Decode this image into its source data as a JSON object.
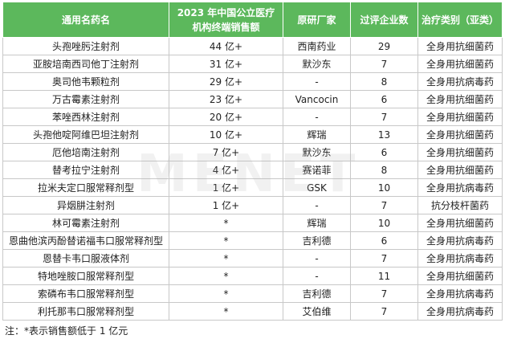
{
  "watermark": "MENET",
  "table": {
    "header": [
      "通用名药名",
      [
        "2023 年中国公立医疗",
        "机构终端销售额"
      ],
      "原研厂家",
      "过评企业数",
      "治疗类别（亚类）"
    ],
    "rows": [
      [
        "头孢唑肟注射剂",
        "44 亿+",
        "西南药业",
        29,
        "全身用抗细菌药"
      ],
      [
        "亚胺培南西司他丁注射剂",
        "31 亿+",
        "默沙东",
        7,
        "全身用抗细菌药"
      ],
      [
        "奥司他韦颗粒剂",
        "29 亿+",
        "-",
        8,
        "全身用抗病毒药"
      ],
      [
        "万古霉素注射剂",
        "23 亿+",
        "Vancocin",
        6,
        "全身用抗细菌药"
      ],
      [
        "苯唑西林注射剂",
        "20 亿+",
        "-",
        7,
        "全身用抗细菌药"
      ],
      [
        "头孢他啶阿维巴坦注射剂",
        "10 亿+",
        "辉瑞",
        13,
        "全身用抗细菌药"
      ],
      [
        "厄他培南注射剂",
        "7 亿+",
        "默沙东",
        6,
        "全身用抗细菌药"
      ],
      [
        "替考拉宁注射剂",
        "4 亿+",
        "赛诺菲",
        8,
        "全身用抗细菌药"
      ],
      [
        "拉米夫定口服常释剂型",
        "1 亿+",
        "GSK",
        10,
        "全身用抗病毒药"
      ],
      [
        "异烟肼注射剂",
        "1 亿+",
        "-",
        7,
        "抗分枝杆菌药"
      ],
      [
        "林可霉素注射剂",
        "*",
        "辉瑞",
        10,
        "全身用抗细菌药"
      ],
      [
        "恩曲他滨丙酚替诺福韦口服常释剂型",
        "*",
        "吉利德",
        6,
        "全身用抗病毒药"
      ],
      [
        "恩替卡韦口服液体剂",
        "*",
        "-",
        7,
        "全身用抗病毒药"
      ],
      [
        "特地唑胺口服常释剂型",
        "*",
        "-",
        11,
        "全身用抗细菌药"
      ],
      [
        "索磷布韦口服常释剂型",
        "*",
        "吉利德",
        7,
        "全身用抗病毒药"
      ],
      [
        "利托那韦口服常释剂型",
        "*",
        "艾伯维",
        7,
        "全身用抗病毒药"
      ]
    ]
  },
  "footnote": "注：*表示销售额低于 1 亿元"
}
